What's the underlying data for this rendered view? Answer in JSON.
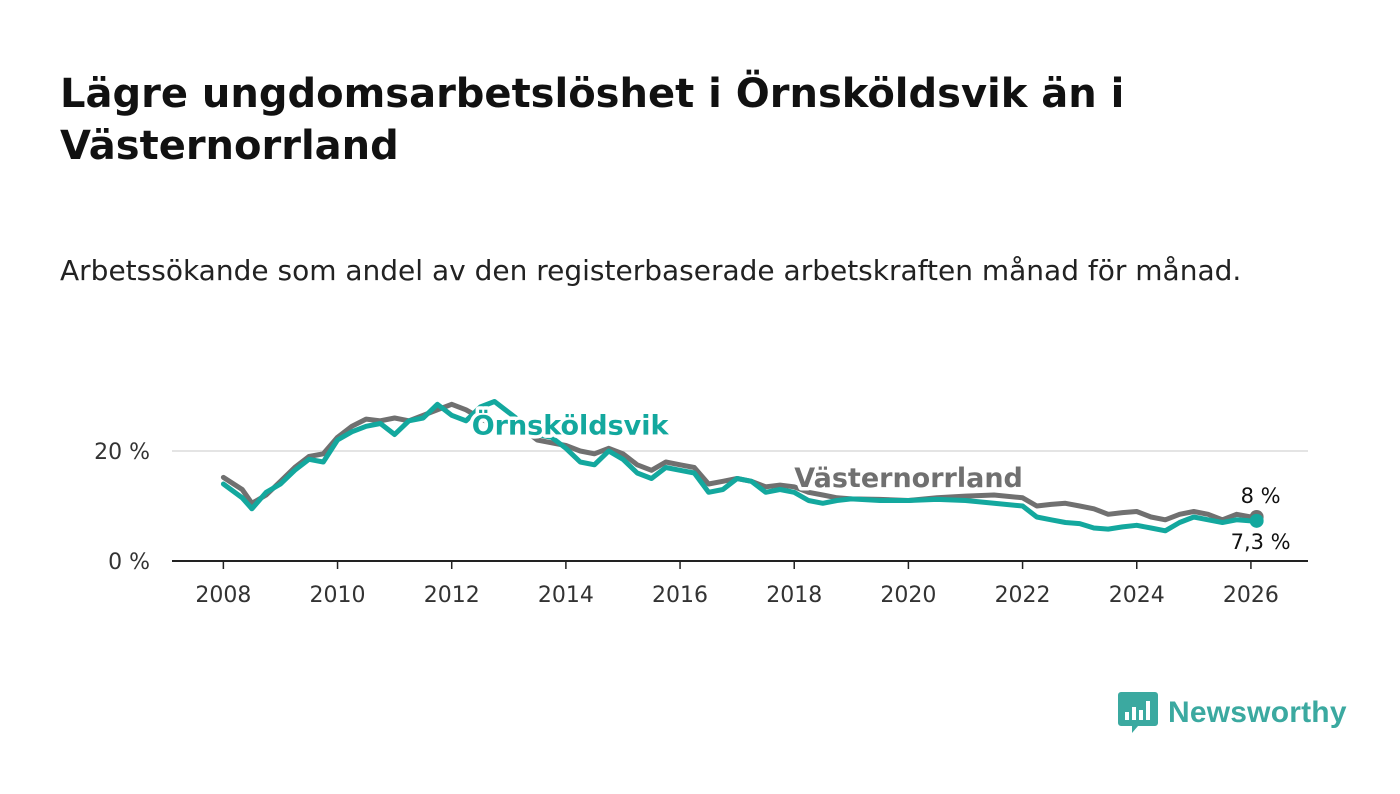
{
  "title": "Lägre ungdomsarbetslöshet i Örnsköldsvik än i Västernorrland",
  "subtitle": "Arbetssökande som andel av den registerbaserade arbetskraften månad för månad.",
  "brand": {
    "name": "Newsworthy",
    "color": "#3ba9a0"
  },
  "chart_data": {
    "type": "line",
    "title": "Lägre ungdomsarbetslöshet i Örnsköldsvik än i Västernorrland",
    "xlabel": "",
    "ylabel": "",
    "xlim": [
      2007.1,
      2027.0
    ],
    "ylim": [
      0,
      30
    ],
    "x_ticks": [
      2008,
      2010,
      2012,
      2014,
      2016,
      2018,
      2020,
      2022,
      2024,
      2026
    ],
    "x_tick_labels": [
      "2008",
      "2010",
      "2012",
      "2014",
      "2016",
      "2018",
      "2020",
      "2022",
      "2024",
      "2026"
    ],
    "y_ticks": [
      0,
      20
    ],
    "y_tick_labels": [
      "0 %",
      "20 %"
    ],
    "grid": true,
    "series": [
      {
        "name": "Västernorrland",
        "color": "#707070",
        "label_anchor": [
          2018.0,
          13.5
        ],
        "end_label": "8 %",
        "points": [
          [
            2008.0,
            15.2
          ],
          [
            2008.33,
            13.0
          ],
          [
            2008.5,
            10.5
          ],
          [
            2008.75,
            12.0
          ],
          [
            2009.0,
            14.5
          ],
          [
            2009.25,
            17.0
          ],
          [
            2009.5,
            19.0
          ],
          [
            2009.75,
            19.5
          ],
          [
            2010.0,
            22.5
          ],
          [
            2010.25,
            24.5
          ],
          [
            2010.5,
            25.8
          ],
          [
            2010.75,
            25.5
          ],
          [
            2011.0,
            26.0
          ],
          [
            2011.25,
            25.5
          ],
          [
            2011.5,
            26.5
          ],
          [
            2011.75,
            27.5
          ],
          [
            2012.0,
            28.5
          ],
          [
            2012.25,
            27.5
          ],
          [
            2012.5,
            26.0
          ],
          [
            2012.75,
            24.5
          ],
          [
            2013.0,
            25.5
          ],
          [
            2013.25,
            24.0
          ],
          [
            2013.5,
            22.0
          ],
          [
            2013.75,
            21.5
          ],
          [
            2014.0,
            21.0
          ],
          [
            2014.25,
            20.0
          ],
          [
            2014.5,
            19.5
          ],
          [
            2014.75,
            20.5
          ],
          [
            2015.0,
            19.5
          ],
          [
            2015.25,
            17.5
          ],
          [
            2015.5,
            16.5
          ],
          [
            2015.75,
            18.0
          ],
          [
            2016.0,
            17.5
          ],
          [
            2016.25,
            17.0
          ],
          [
            2016.5,
            14.0
          ],
          [
            2016.75,
            14.5
          ],
          [
            2017.0,
            15.0
          ],
          [
            2017.25,
            14.5
          ],
          [
            2017.5,
            13.5
          ],
          [
            2017.75,
            13.8
          ],
          [
            2018.0,
            13.5
          ],
          [
            2018.25,
            12.5
          ],
          [
            2018.5,
            12.0
          ],
          [
            2018.75,
            11.5
          ],
          [
            2019.0,
            11.3
          ],
          [
            2019.5,
            11.2
          ],
          [
            2020.0,
            11.0
          ],
          [
            2020.5,
            11.5
          ],
          [
            2021.0,
            11.8
          ],
          [
            2021.5,
            12.0
          ],
          [
            2022.0,
            11.5
          ],
          [
            2022.25,
            10.0
          ],
          [
            2022.5,
            10.3
          ],
          [
            2022.75,
            10.5
          ],
          [
            2023.0,
            10.0
          ],
          [
            2023.25,
            9.5
          ],
          [
            2023.5,
            8.5
          ],
          [
            2023.75,
            8.8
          ],
          [
            2024.0,
            9.0
          ],
          [
            2024.25,
            8.0
          ],
          [
            2024.5,
            7.5
          ],
          [
            2024.75,
            8.5
          ],
          [
            2025.0,
            9.0
          ],
          [
            2025.25,
            8.5
          ],
          [
            2025.5,
            7.5
          ],
          [
            2025.75,
            8.5
          ],
          [
            2026.0,
            8.0
          ],
          [
            2026.1,
            8.0
          ]
        ]
      },
      {
        "name": "Örnsköldsvik",
        "color": "#13a89e",
        "label_anchor": [
          2012.35,
          23.0
        ],
        "end_label": "7,3 %",
        "points": [
          [
            2008.0,
            14.0
          ],
          [
            2008.33,
            11.5
          ],
          [
            2008.5,
            9.5
          ],
          [
            2008.75,
            12.5
          ],
          [
            2009.0,
            14.0
          ],
          [
            2009.25,
            16.5
          ],
          [
            2009.5,
            18.5
          ],
          [
            2009.75,
            18.0
          ],
          [
            2010.0,
            22.0
          ],
          [
            2010.25,
            23.5
          ],
          [
            2010.5,
            24.5
          ],
          [
            2010.75,
            25.0
          ],
          [
            2011.0,
            23.0
          ],
          [
            2011.25,
            25.5
          ],
          [
            2011.5,
            26.0
          ],
          [
            2011.75,
            28.5
          ],
          [
            2012.0,
            26.5
          ],
          [
            2012.25,
            25.5
          ],
          [
            2012.5,
            28.0
          ],
          [
            2012.75,
            29.0
          ],
          [
            2013.0,
            27.0
          ],
          [
            2013.25,
            25.0
          ],
          [
            2013.5,
            23.0
          ],
          [
            2013.75,
            22.5
          ],
          [
            2014.0,
            20.5
          ],
          [
            2014.25,
            18.0
          ],
          [
            2014.5,
            17.5
          ],
          [
            2014.75,
            20.0
          ],
          [
            2015.0,
            18.5
          ],
          [
            2015.25,
            16.0
          ],
          [
            2015.5,
            15.0
          ],
          [
            2015.75,
            17.0
          ],
          [
            2016.0,
            16.5
          ],
          [
            2016.25,
            16.0
          ],
          [
            2016.5,
            12.5
          ],
          [
            2016.75,
            13.0
          ],
          [
            2017.0,
            15.0
          ],
          [
            2017.25,
            14.5
          ],
          [
            2017.5,
            12.5
          ],
          [
            2017.75,
            13.0
          ],
          [
            2018.0,
            12.5
          ],
          [
            2018.25,
            11.0
          ],
          [
            2018.5,
            10.5
          ],
          [
            2018.75,
            11.0
          ],
          [
            2019.0,
            11.3
          ],
          [
            2019.5,
            11.0
          ],
          [
            2020.0,
            11.0
          ],
          [
            2020.5,
            11.2
          ],
          [
            2021.0,
            11.0
          ],
          [
            2021.5,
            10.5
          ],
          [
            2022.0,
            10.0
          ],
          [
            2022.25,
            8.0
          ],
          [
            2022.5,
            7.5
          ],
          [
            2022.75,
            7.0
          ],
          [
            2023.0,
            6.8
          ],
          [
            2023.25,
            6.0
          ],
          [
            2023.5,
            5.8
          ],
          [
            2023.75,
            6.2
          ],
          [
            2024.0,
            6.5
          ],
          [
            2024.25,
            6.0
          ],
          [
            2024.5,
            5.5
          ],
          [
            2024.75,
            7.0
          ],
          [
            2025.0,
            8.0
          ],
          [
            2025.25,
            7.5
          ],
          [
            2025.5,
            7.0
          ],
          [
            2025.75,
            7.5
          ],
          [
            2026.0,
            7.3
          ],
          [
            2026.1,
            7.3
          ]
        ]
      }
    ]
  }
}
